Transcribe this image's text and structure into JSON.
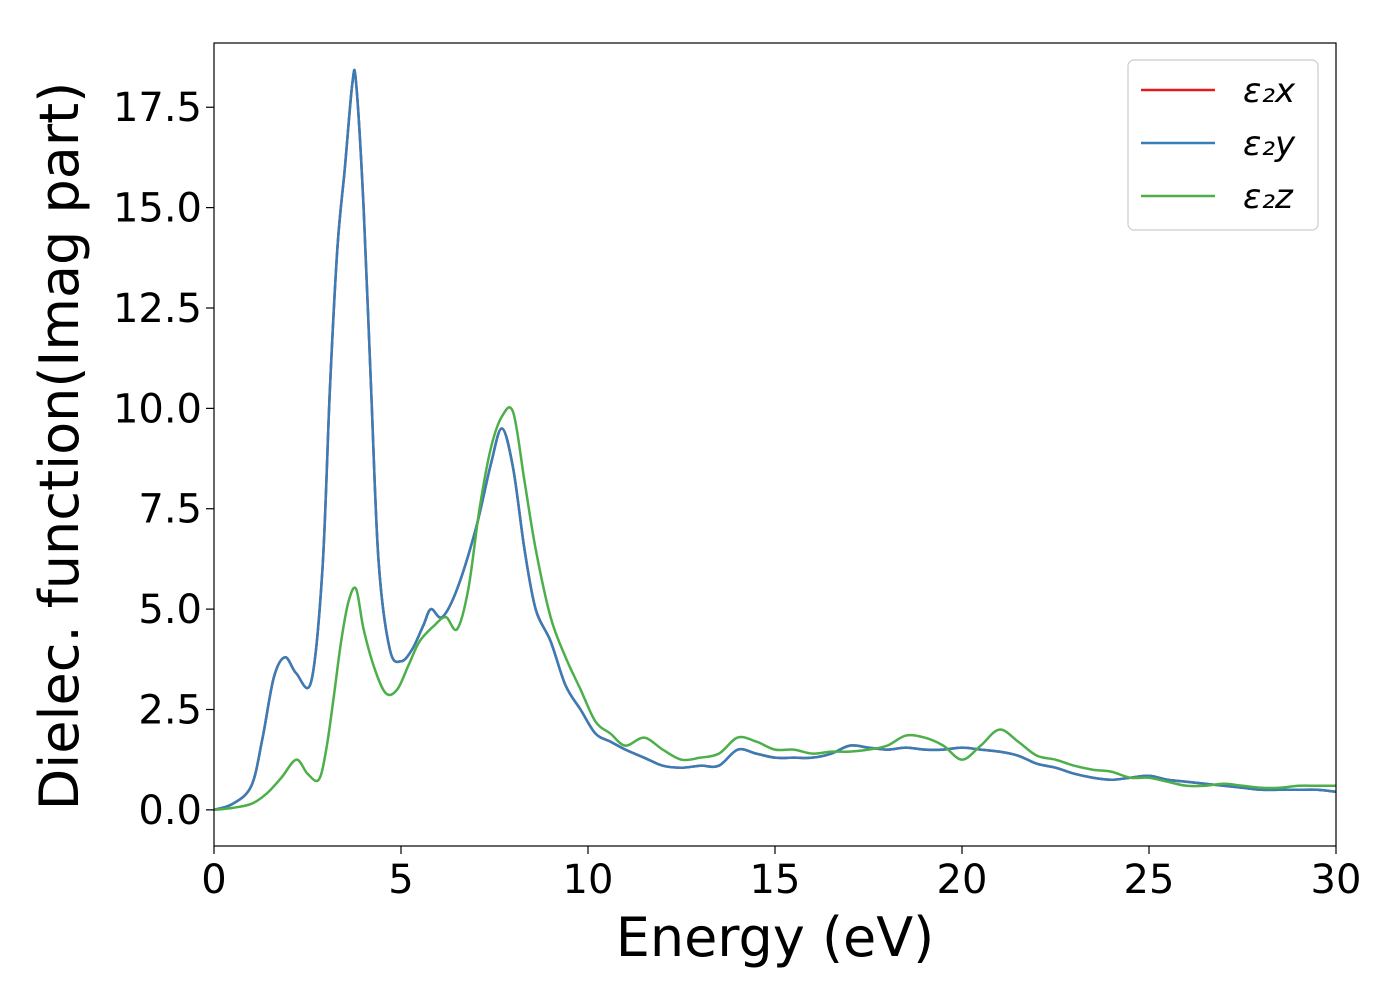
{
  "chart_data": {
    "type": "line",
    "title": "",
    "xlabel": "Energy (eV)",
    "ylabel": "Dielec. function(Imag part)",
    "xlim": [
      0,
      30
    ],
    "ylim": [
      -0.9,
      19.1
    ],
    "xticks": [
      0,
      5,
      10,
      15,
      20,
      25,
      30
    ],
    "yticks": [
      0.0,
      2.5,
      5.0,
      7.5,
      10.0,
      12.5,
      15.0,
      17.5
    ],
    "xtick_labels": [
      "0",
      "5",
      "10",
      "15",
      "20",
      "25",
      "30"
    ],
    "ytick_labels": [
      "0.0",
      "2.5",
      "5.0",
      "7.5",
      "10.0",
      "12.5",
      "15.0",
      "17.5"
    ],
    "grid": false,
    "legend_position": "top-right",
    "legend_labels": {
      "e2x": "ε₂x",
      "e2y": "ε₂y",
      "e2z": "ε₂z"
    },
    "series": [
      {
        "name": "ε₂x",
        "color": "#e41a1c",
        "x": [
          0,
          0.5,
          1.0,
          1.3,
          1.6,
          1.9,
          2.2,
          2.6,
          2.9,
          3.1,
          3.3,
          3.5,
          3.7,
          3.8,
          4.0,
          4.2,
          4.4,
          4.7,
          5.0,
          5.3,
          5.6,
          5.8,
          6.1,
          6.5,
          7.0,
          7.4,
          7.7,
          8.0,
          8.3,
          8.6,
          9.0,
          9.4,
          9.8,
          10.2,
          10.6,
          11.0,
          11.5,
          12.0,
          12.5,
          13.0,
          13.5,
          14.0,
          14.5,
          15.0,
          15.5,
          16.0,
          16.5,
          17.0,
          17.5,
          18.0,
          18.5,
          19.0,
          19.5,
          20.0,
          20.5,
          21.0,
          21.5,
          22.0,
          22.5,
          23.0,
          23.5,
          24.0,
          24.5,
          25.0,
          25.5,
          26.0,
          26.5,
          27.0,
          27.5,
          28.0,
          28.5,
          29.0,
          29.5,
          30.0
        ],
        "y": [
          0.0,
          0.15,
          0.6,
          1.8,
          3.3,
          3.8,
          3.4,
          3.2,
          6.0,
          10.5,
          14.0,
          16.0,
          18.1,
          18.1,
          15.0,
          10.5,
          6.2,
          4.0,
          3.7,
          4.0,
          4.6,
          5.0,
          4.8,
          5.5,
          7.0,
          8.6,
          9.5,
          8.5,
          6.5,
          5.0,
          4.2,
          3.1,
          2.5,
          1.9,
          1.7,
          1.5,
          1.3,
          1.1,
          1.05,
          1.1,
          1.1,
          1.5,
          1.4,
          1.3,
          1.3,
          1.3,
          1.4,
          1.6,
          1.55,
          1.5,
          1.55,
          1.5,
          1.5,
          1.55,
          1.5,
          1.45,
          1.35,
          1.15,
          1.05,
          0.9,
          0.8,
          0.75,
          0.8,
          0.85,
          0.75,
          0.7,
          0.65,
          0.6,
          0.55,
          0.5,
          0.5,
          0.5,
          0.5,
          0.45
        ]
      },
      {
        "name": "ε₂y",
        "color": "#377eb8",
        "x": [
          0,
          0.5,
          1.0,
          1.3,
          1.6,
          1.9,
          2.2,
          2.6,
          2.9,
          3.1,
          3.3,
          3.5,
          3.7,
          3.8,
          4.0,
          4.2,
          4.4,
          4.7,
          5.0,
          5.3,
          5.6,
          5.8,
          6.1,
          6.5,
          7.0,
          7.4,
          7.7,
          8.0,
          8.3,
          8.6,
          9.0,
          9.4,
          9.8,
          10.2,
          10.6,
          11.0,
          11.5,
          12.0,
          12.5,
          13.0,
          13.5,
          14.0,
          14.5,
          15.0,
          15.5,
          16.0,
          16.5,
          17.0,
          17.5,
          18.0,
          18.5,
          19.0,
          19.5,
          20.0,
          20.5,
          21.0,
          21.5,
          22.0,
          22.5,
          23.0,
          23.5,
          24.0,
          24.5,
          25.0,
          25.5,
          26.0,
          26.5,
          27.0,
          27.5,
          28.0,
          28.5,
          29.0,
          29.5,
          30.0
        ],
        "y": [
          0.0,
          0.15,
          0.6,
          1.8,
          3.3,
          3.8,
          3.4,
          3.2,
          6.0,
          10.5,
          14.0,
          16.0,
          18.1,
          18.1,
          15.0,
          10.5,
          6.2,
          4.0,
          3.7,
          4.0,
          4.6,
          5.0,
          4.8,
          5.5,
          7.0,
          8.6,
          9.5,
          8.5,
          6.5,
          5.0,
          4.2,
          3.1,
          2.5,
          1.9,
          1.7,
          1.5,
          1.3,
          1.1,
          1.05,
          1.1,
          1.1,
          1.5,
          1.4,
          1.3,
          1.3,
          1.3,
          1.4,
          1.6,
          1.55,
          1.5,
          1.55,
          1.5,
          1.5,
          1.55,
          1.5,
          1.45,
          1.35,
          1.15,
          1.05,
          0.9,
          0.8,
          0.75,
          0.8,
          0.85,
          0.75,
          0.7,
          0.65,
          0.6,
          0.55,
          0.5,
          0.5,
          0.5,
          0.5,
          0.45
        ]
      },
      {
        "name": "ε₂z",
        "color": "#4daf4a",
        "x": [
          0,
          0.5,
          1.0,
          1.4,
          1.8,
          2.2,
          2.5,
          2.8,
          3.0,
          3.2,
          3.4,
          3.6,
          3.8,
          4.0,
          4.3,
          4.6,
          4.9,
          5.2,
          5.5,
          5.9,
          6.2,
          6.5,
          6.8,
          7.1,
          7.4,
          7.7,
          8.0,
          8.3,
          8.6,
          9.0,
          9.4,
          9.8,
          10.2,
          10.6,
          11.0,
          11.5,
          12.0,
          12.5,
          13.0,
          13.5,
          14.0,
          14.5,
          15.0,
          15.5,
          16.0,
          16.5,
          17.0,
          17.5,
          18.0,
          18.5,
          19.0,
          19.5,
          20.0,
          20.5,
          21.0,
          21.5,
          22.0,
          22.5,
          23.0,
          23.5,
          24.0,
          24.5,
          25.0,
          25.5,
          26.0,
          26.5,
          27.0,
          27.5,
          28.0,
          28.5,
          29.0,
          29.5,
          30.0
        ],
        "y": [
          0.0,
          0.05,
          0.15,
          0.4,
          0.8,
          1.25,
          0.9,
          0.75,
          1.5,
          2.8,
          4.2,
          5.2,
          5.5,
          4.5,
          3.5,
          2.9,
          3.0,
          3.6,
          4.2,
          4.6,
          4.8,
          4.5,
          5.5,
          7.5,
          9.0,
          9.8,
          9.9,
          8.2,
          6.5,
          4.8,
          3.8,
          3.0,
          2.2,
          1.9,
          1.6,
          1.8,
          1.5,
          1.25,
          1.3,
          1.4,
          1.8,
          1.7,
          1.5,
          1.5,
          1.4,
          1.45,
          1.45,
          1.5,
          1.6,
          1.85,
          1.8,
          1.6,
          1.25,
          1.6,
          2.0,
          1.7,
          1.35,
          1.25,
          1.1,
          1.0,
          0.95,
          0.8,
          0.8,
          0.7,
          0.6,
          0.6,
          0.65,
          0.6,
          0.55,
          0.55,
          0.6,
          0.6,
          0.6
        ]
      }
    ]
  }
}
